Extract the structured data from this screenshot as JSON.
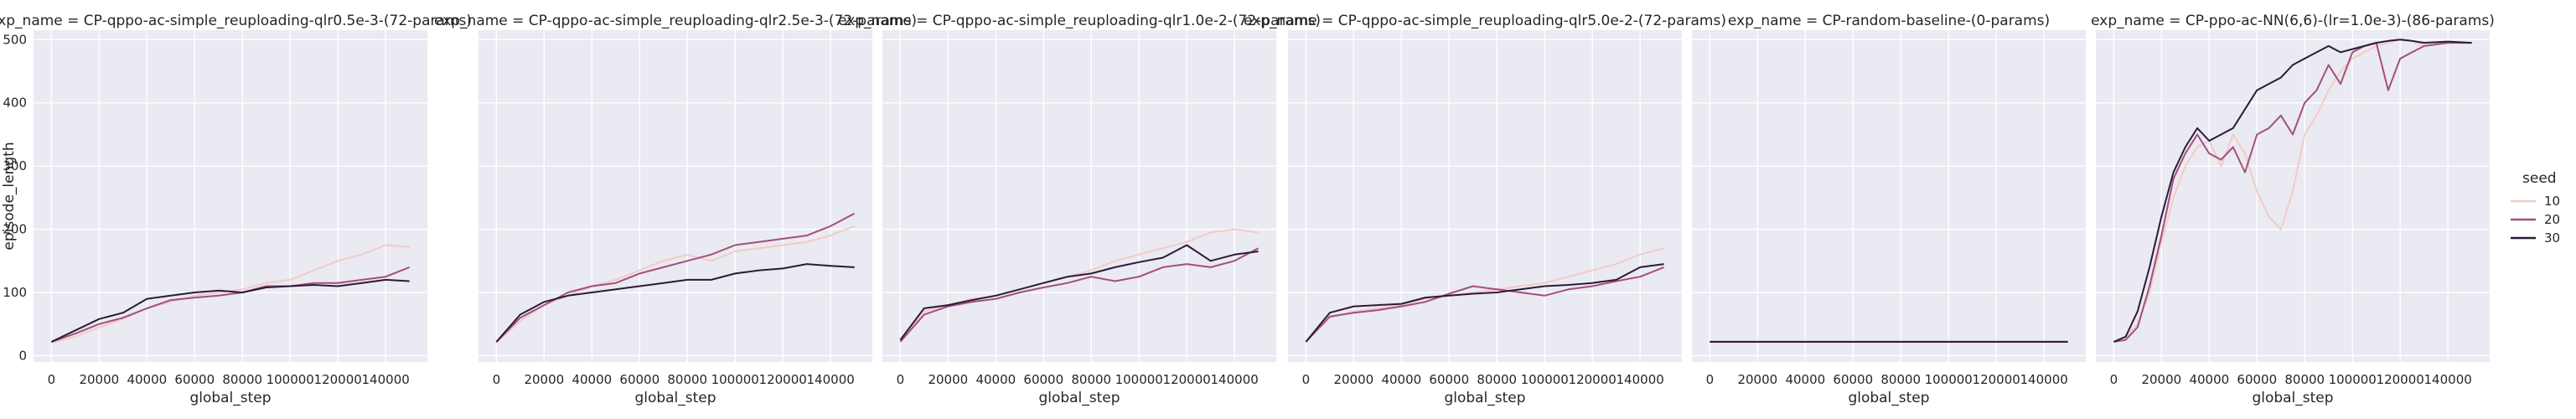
{
  "chart_data": {
    "type": "line",
    "x_label": "global_step",
    "y_label": "episode_length",
    "xlim": [
      -7500,
      157500
    ],
    "ylim": [
      -10,
      515
    ],
    "x_ticks": [
      0,
      20000,
      40000,
      60000,
      80000,
      100000,
      120000,
      140000
    ],
    "y_ticks": [
      0,
      100,
      200,
      300,
      400,
      500
    ],
    "grid": true,
    "legend": {
      "title": "seed",
      "placement": "right",
      "entries": [
        {
          "label": "10",
          "color": "#f2cbc7"
        },
        {
          "label": "20",
          "color": "#a34f7c"
        },
        {
          "label": "30",
          "color": "#2c1a38"
        }
      ]
    },
    "panels": [
      {
        "title": "exp_name = CP-qppo-ac-simple_reuploading-qlr0.5e-3-(72-params)",
        "series": [
          {
            "name": "10",
            "x": [
              0,
              10000,
              20000,
              30000,
              40000,
              50000,
              60000,
              70000,
              80000,
              90000,
              100000,
              110000,
              120000,
              130000,
              140000,
              150000
            ],
            "y": [
              20,
              30,
              45,
              58,
              75,
              85,
              95,
              100,
              105,
              115,
              120,
              135,
              150,
              160,
              175,
              172
            ]
          },
          {
            "name": "20",
            "x": [
              0,
              10000,
              20000,
              30000,
              40000,
              50000,
              60000,
              70000,
              80000,
              90000,
              100000,
              110000,
              120000,
              130000,
              140000,
              150000
            ],
            "y": [
              22,
              35,
              50,
              60,
              75,
              88,
              92,
              95,
              100,
              110,
              110,
              115,
              115,
              120,
              125,
              140
            ]
          },
          {
            "name": "30",
            "x": [
              0,
              10000,
              20000,
              30000,
              40000,
              50000,
              60000,
              70000,
              80000,
              90000,
              100000,
              110000,
              120000,
              130000,
              140000,
              150000
            ],
            "y": [
              22,
              40,
              58,
              68,
              90,
              95,
              100,
              103,
              100,
              108,
              110,
              112,
              110,
              115,
              120,
              118
            ]
          }
        ]
      },
      {
        "title": "exp_name = CP-qppo-ac-simple_reuploading-qlr2.5e-3-(72-params)",
        "series": [
          {
            "name": "10",
            "x": [
              0,
              10000,
              20000,
              30000,
              40000,
              50000,
              60000,
              70000,
              80000,
              90000,
              100000,
              110000,
              120000,
              130000,
              140000,
              150000
            ],
            "y": [
              20,
              55,
              80,
              95,
              110,
              120,
              135,
              150,
              160,
              150,
              165,
              170,
              175,
              180,
              190,
              205
            ]
          },
          {
            "name": "20",
            "x": [
              0,
              10000,
              20000,
              30000,
              40000,
              50000,
              60000,
              70000,
              80000,
              90000,
              100000,
              110000,
              120000,
              130000,
              140000,
              150000
            ],
            "y": [
              22,
              60,
              80,
              100,
              110,
              115,
              130,
              140,
              150,
              160,
              175,
              180,
              185,
              190,
              205,
              225
            ]
          },
          {
            "name": "30",
            "x": [
              0,
              10000,
              20000,
              30000,
              40000,
              50000,
              60000,
              70000,
              80000,
              90000,
              100000,
              110000,
              120000,
              130000,
              140000,
              150000
            ],
            "y": [
              22,
              65,
              85,
              95,
              100,
              105,
              110,
              115,
              120,
              120,
              130,
              135,
              138,
              145,
              142,
              140
            ]
          }
        ]
      },
      {
        "title": "exp_name = CP-qppo-ac-simple_reuploading-qlr1.0e-2-(72-params)",
        "series": [
          {
            "name": "10",
            "x": [
              0,
              10000,
              20000,
              30000,
              40000,
              50000,
              60000,
              70000,
              80000,
              90000,
              100000,
              110000,
              120000,
              130000,
              140000,
              150000
            ],
            "y": [
              25,
              70,
              80,
              90,
              95,
              105,
              115,
              125,
              135,
              150,
              160,
              170,
              180,
              195,
              200,
              195
            ]
          },
          {
            "name": "20",
            "x": [
              0,
              10000,
              20000,
              30000,
              40000,
              50000,
              60000,
              70000,
              80000,
              90000,
              100000,
              110000,
              120000,
              130000,
              140000,
              150000
            ],
            "y": [
              22,
              65,
              78,
              85,
              90,
              100,
              108,
              115,
              125,
              118,
              125,
              140,
              145,
              140,
              150,
              170
            ]
          },
          {
            "name": "30",
            "x": [
              0,
              10000,
              20000,
              30000,
              40000,
              50000,
              60000,
              70000,
              80000,
              90000,
              100000,
              110000,
              120000,
              130000,
              140000,
              150000
            ],
            "y": [
              25,
              75,
              80,
              88,
              95,
              105,
              115,
              125,
              130,
              140,
              148,
              155,
              175,
              150,
              160,
              165
            ]
          }
        ]
      },
      {
        "title": "exp_name = CP-qppo-ac-simple_reuploading-qlr5.0e-2-(72-params)",
        "series": [
          {
            "name": "10",
            "x": [
              0,
              10000,
              20000,
              30000,
              40000,
              50000,
              60000,
              70000,
              80000,
              90000,
              100000,
              110000,
              120000,
              130000,
              140000,
              150000
            ],
            "y": [
              22,
              60,
              70,
              75,
              80,
              90,
              95,
              100,
              105,
              110,
              115,
              125,
              135,
              145,
              160,
              170
            ]
          },
          {
            "name": "20",
            "x": [
              0,
              10000,
              20000,
              30000,
              40000,
              50000,
              60000,
              70000,
              80000,
              90000,
              100000,
              110000,
              120000,
              130000,
              140000,
              150000
            ],
            "y": [
              22,
              62,
              68,
              72,
              78,
              85,
              98,
              110,
              105,
              100,
              95,
              105,
              110,
              118,
              125,
              140
            ]
          },
          {
            "name": "30",
            "x": [
              0,
              10000,
              20000,
              30000,
              40000,
              50000,
              60000,
              70000,
              80000,
              90000,
              100000,
              110000,
              120000,
              130000,
              140000,
              150000
            ],
            "y": [
              22,
              68,
              78,
              80,
              82,
              92,
              95,
              98,
              100,
              105,
              110,
              112,
              115,
              120,
              140,
              145
            ]
          }
        ]
      },
      {
        "title": "exp_name = CP-random-baseline-(0-params)",
        "series": [
          {
            "name": "10",
            "x": [
              0,
              150000
            ],
            "y": [
              22,
              22
            ]
          },
          {
            "name": "20",
            "x": [
              0,
              150000
            ],
            "y": [
              22,
              22
            ]
          },
          {
            "name": "30",
            "x": [
              0,
              150000
            ],
            "y": [
              22,
              22
            ]
          }
        ]
      },
      {
        "title": "exp_name = CP-ppo-ac-NN(6,6)-(lr=1.0e-3)-(86-params)",
        "series": [
          {
            "name": "10",
            "x": [
              0,
              5000,
              10000,
              15000,
              20000,
              25000,
              30000,
              35000,
              40000,
              45000,
              50000,
              55000,
              60000,
              65000,
              70000,
              75000,
              80000,
              85000,
              90000,
              95000,
              100000,
              105000,
              110000,
              115000,
              120000,
              125000,
              130000,
              140000,
              150000
            ],
            "y": [
              22,
              30,
              50,
              100,
              180,
              250,
              300,
              330,
              340,
              300,
              350,
              320,
              260,
              220,
              200,
              260,
              350,
              380,
              420,
              450,
              470,
              480,
              490,
              495,
              500,
              498,
              490,
              495,
              495
            ]
          },
          {
            "name": "20",
            "x": [
              0,
              5000,
              10000,
              15000,
              20000,
              25000,
              30000,
              35000,
              40000,
              45000,
              50000,
              55000,
              60000,
              65000,
              70000,
              75000,
              80000,
              85000,
              90000,
              95000,
              100000,
              105000,
              110000,
              115000,
              120000,
              125000,
              130000,
              140000,
              150000
            ],
            "y": [
              22,
              25,
              45,
              110,
              190,
              280,
              320,
              350,
              320,
              310,
              330,
              290,
              350,
              360,
              380,
              350,
              400,
              420,
              460,
              430,
              480,
              490,
              495,
              420,
              470,
              480,
              490,
              495,
              495
            ]
          },
          {
            "name": "30",
            "x": [
              0,
              5000,
              10000,
              15000,
              20000,
              25000,
              30000,
              35000,
              40000,
              45000,
              50000,
              55000,
              60000,
              65000,
              70000,
              75000,
              80000,
              85000,
              90000,
              95000,
              100000,
              105000,
              110000,
              115000,
              120000,
              125000,
              130000,
              140000,
              150000
            ],
            "y": [
              22,
              30,
              70,
              140,
              220,
              290,
              330,
              360,
              340,
              350,
              360,
              390,
              420,
              430,
              440,
              460,
              470,
              480,
              490,
              480,
              485,
              490,
              495,
              498,
              500,
              498,
              495,
              497,
              495
            ]
          }
        ]
      }
    ]
  }
}
